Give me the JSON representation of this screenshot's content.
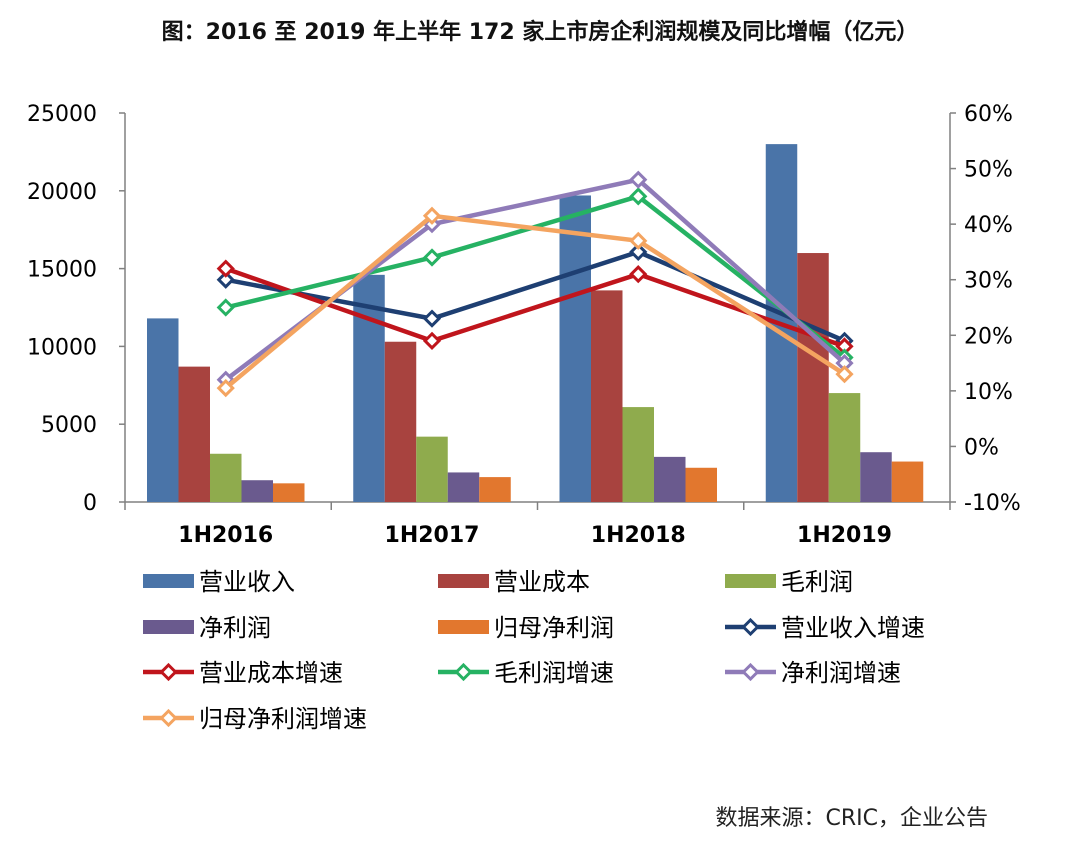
{
  "chart_data": {
    "type": "bar",
    "title": "图：2016 至 2019 年上半年 172 家上市房企利润规模及同比增幅（亿元）",
    "categories": [
      "1H2016",
      "1H2017",
      "1H2018",
      "1H2019"
    ],
    "y_left": {
      "ylim": [
        0,
        25000
      ],
      "ticks": [
        "0",
        "5000",
        "10000",
        "15000",
        "20000",
        "25000"
      ]
    },
    "y_right": {
      "ylim": [
        -10,
        60
      ],
      "unit": "%",
      "ticks": [
        "-10%",
        "0%",
        "10%",
        "20%",
        "30%",
        "40%",
        "50%",
        "60%"
      ]
    },
    "bar_series": [
      {
        "name": "营业收入",
        "color": "#4a74a8",
        "values": [
          11800,
          14600,
          19700,
          23000
        ]
      },
      {
        "name": "营业成本",
        "color": "#a8433f",
        "values": [
          8700,
          10300,
          13600,
          16000
        ]
      },
      {
        "name": "毛利润",
        "color": "#8fab4d",
        "values": [
          3100,
          4200,
          6100,
          7000
        ]
      },
      {
        "name": "净利润",
        "color": "#6a5a8e",
        "values": [
          1400,
          1900,
          2900,
          3200
        ]
      },
      {
        "name": "归母净利润",
        "color": "#e2772e",
        "values": [
          1200,
          1600,
          2200,
          2600
        ]
      }
    ],
    "line_series": [
      {
        "name": "营业收入增速",
        "color": "#1e3f72",
        "values": [
          30,
          23,
          35,
          19
        ]
      },
      {
        "name": "营业成本增速",
        "color": "#c0151c",
        "values": [
          32,
          19,
          31,
          18
        ]
      },
      {
        "name": "毛利润增速",
        "color": "#26b263",
        "values": [
          25,
          34,
          45,
          16
        ]
      },
      {
        "name": "净利润增速",
        "color": "#8f7bb8",
        "values": [
          12,
          40,
          48,
          15
        ]
      },
      {
        "name": "归母净利润增速",
        "color": "#f4a460",
        "values": [
          10.5,
          41.5,
          37,
          13
        ]
      }
    ],
    "legend_position": "bottom"
  },
  "source_text": "数据来源：CRIC，企业公告"
}
